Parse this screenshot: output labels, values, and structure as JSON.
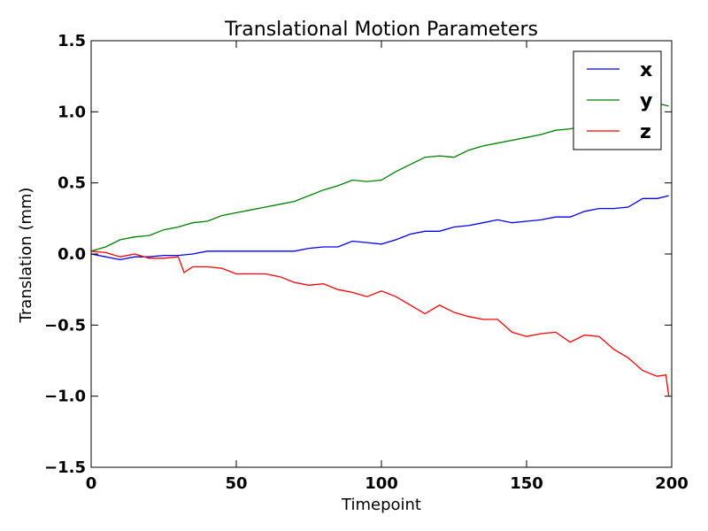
{
  "chart_data": {
    "type": "line",
    "title": "Translational Motion Parameters",
    "xlabel": "Timepoint",
    "ylabel": "Translation (mm)",
    "xlim": [
      0,
      200
    ],
    "ylim": [
      -1.5,
      1.5
    ],
    "x_ticks": [
      "0",
      "50",
      "100",
      "150",
      "200"
    ],
    "y_ticks": [
      "−1.5",
      "−1.0",
      "−0.5",
      "0.0",
      "0.5",
      "1.0",
      "1.5"
    ],
    "grid": false,
    "legend_position": "top-right",
    "series": [
      {
        "name": "x",
        "color": "#0000ff",
        "x": [
          0,
          5,
          10,
          15,
          20,
          25,
          30,
          35,
          40,
          45,
          50,
          55,
          60,
          65,
          70,
          75,
          80,
          85,
          90,
          95,
          100,
          105,
          110,
          115,
          120,
          125,
          130,
          135,
          140,
          145,
          150,
          155,
          160,
          165,
          170,
          175,
          180,
          185,
          190,
          195,
          199
        ],
        "y": [
          0.0,
          -0.02,
          -0.04,
          -0.02,
          -0.02,
          -0.01,
          -0.01,
          0.0,
          0.02,
          0.02,
          0.02,
          0.02,
          0.02,
          0.02,
          0.02,
          0.04,
          0.05,
          0.05,
          0.09,
          0.08,
          0.07,
          0.1,
          0.14,
          0.16,
          0.16,
          0.19,
          0.2,
          0.22,
          0.24,
          0.22,
          0.23,
          0.24,
          0.26,
          0.26,
          0.3,
          0.32,
          0.32,
          0.33,
          0.39,
          0.39,
          0.41
        ]
      },
      {
        "name": "y",
        "color": "#008000",
        "x": [
          0,
          5,
          10,
          15,
          20,
          25,
          30,
          35,
          40,
          45,
          50,
          55,
          60,
          65,
          70,
          75,
          80,
          85,
          90,
          95,
          100,
          105,
          110,
          115,
          120,
          125,
          130,
          135,
          140,
          145,
          150,
          155,
          160,
          165,
          170,
          175,
          180,
          185,
          190,
          195,
          199
        ],
        "y": [
          0.02,
          0.05,
          0.1,
          0.12,
          0.13,
          0.17,
          0.19,
          0.22,
          0.23,
          0.27,
          0.29,
          0.31,
          0.33,
          0.35,
          0.37,
          0.41,
          0.45,
          0.48,
          0.52,
          0.51,
          0.52,
          0.58,
          0.63,
          0.68,
          0.69,
          0.68,
          0.73,
          0.76,
          0.78,
          0.8,
          0.82,
          0.84,
          0.87,
          0.88,
          0.9,
          0.95,
          0.97,
          1.01,
          1.03,
          1.06,
          1.04
        ]
      },
      {
        "name": "z",
        "color": "#ff0000",
        "x": [
          0,
          5,
          10,
          15,
          20,
          25,
          30,
          32,
          35,
          40,
          45,
          50,
          55,
          60,
          65,
          70,
          75,
          80,
          85,
          90,
          95,
          100,
          105,
          110,
          115,
          120,
          125,
          130,
          135,
          140,
          145,
          150,
          155,
          160,
          165,
          170,
          175,
          180,
          185,
          190,
          195,
          198,
          199
        ],
        "y": [
          0.02,
          0.01,
          -0.02,
          0.0,
          -0.03,
          -0.03,
          -0.02,
          -0.13,
          -0.09,
          -0.09,
          -0.1,
          -0.14,
          -0.14,
          -0.14,
          -0.16,
          -0.2,
          -0.22,
          -0.21,
          -0.25,
          -0.27,
          -0.3,
          -0.26,
          -0.3,
          -0.36,
          -0.42,
          -0.36,
          -0.41,
          -0.44,
          -0.46,
          -0.46,
          -0.55,
          -0.58,
          -0.56,
          -0.55,
          -0.62,
          -0.57,
          -0.58,
          -0.67,
          -0.73,
          -0.82,
          -0.86,
          -0.85,
          -1.0
        ]
      }
    ]
  }
}
